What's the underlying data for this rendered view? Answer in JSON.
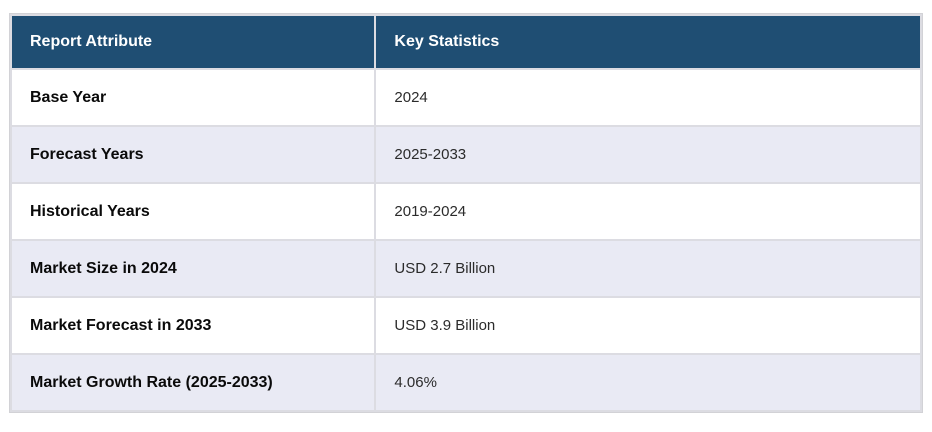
{
  "table": {
    "title_semantics": "market report key statistics table",
    "columns": [
      {
        "label": "Report Attribute"
      },
      {
        "label": "Key Statistics"
      }
    ],
    "rows": [
      {
        "attribute": "Base Year",
        "value": "2024"
      },
      {
        "attribute": "Forecast Years",
        "value": "2025-2033"
      },
      {
        "attribute": "Historical Years",
        "value": "2019-2024"
      },
      {
        "attribute": "Market Size in 2024",
        "value": "USD 2.7 Billion"
      },
      {
        "attribute": "Market Forecast in 2033",
        "value": "USD 3.9 Billion"
      },
      {
        "attribute": "Market Growth Rate (2025-2033)",
        "value": "4.06%"
      }
    ],
    "colors": {
      "header_bg": "#1F4E73",
      "header_text": "#FFFFFF",
      "row_bg": "#FFFFFF",
      "row_alt_bg": "#E9EAF4",
      "grid": "#DCDCE2",
      "outer_border": "#D2D2D6",
      "label_text": "#0A0A0A",
      "value_text": "#2B2B2B"
    }
  }
}
